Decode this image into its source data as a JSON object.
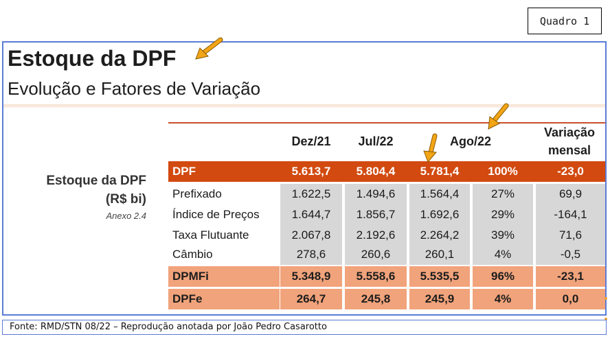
{
  "quadro_label": "Quadro 1",
  "title": "Estoque da DPF",
  "subtitle": "Evolução e Fatores de Variação",
  "side_label": {
    "line1": "Estoque da DPF",
    "line2": "(R$ bi)",
    "note": "Anexo 2.4"
  },
  "table": {
    "headers": [
      "Dez/21",
      "Jul/22",
      "Ago/22",
      "Variação",
      "mensal"
    ],
    "rows": [
      {
        "label": "DPF",
        "values": [
          "5.613,7",
          "5.804,4",
          "5.781,4",
          "100%",
          "-23,0"
        ]
      },
      {
        "label": "Prefixado",
        "values": [
          "1.622,5",
          "1.494,6",
          "1.564,4",
          "27%",
          "69,9"
        ]
      },
      {
        "label": "Índice de Preços",
        "values": [
          "1.644,7",
          "1.856,7",
          "1.692,6",
          "29%",
          "-164,1"
        ]
      },
      {
        "label": "Taxa Flutuante",
        "values": [
          "2.067,8",
          "2.192,6",
          "2.264,2",
          "39%",
          "71,6"
        ]
      },
      {
        "label": "Câmbio",
        "values": [
          "278,6",
          "260,6",
          "260,1",
          "4%",
          "-0,5"
        ]
      },
      {
        "label": "DPMFi",
        "values": [
          "5.348,9",
          "5.558,6",
          "5.535,5",
          "96%",
          "-23,1"
        ]
      },
      {
        "label": "DPFe",
        "values": [
          "264,7",
          "245,8",
          "245,9",
          "4%",
          "0,0"
        ]
      }
    ]
  },
  "footer": "Fonte: RMD/STN 08/22 – Reprodução anotada por João Pedro Casarotto",
  "colors": {
    "accent": "#d24a0f",
    "total_rows": "#f1a37b",
    "sub_cells": "#d7d7d7",
    "arrow": "#f2a516",
    "border": "#5b7bd6"
  }
}
